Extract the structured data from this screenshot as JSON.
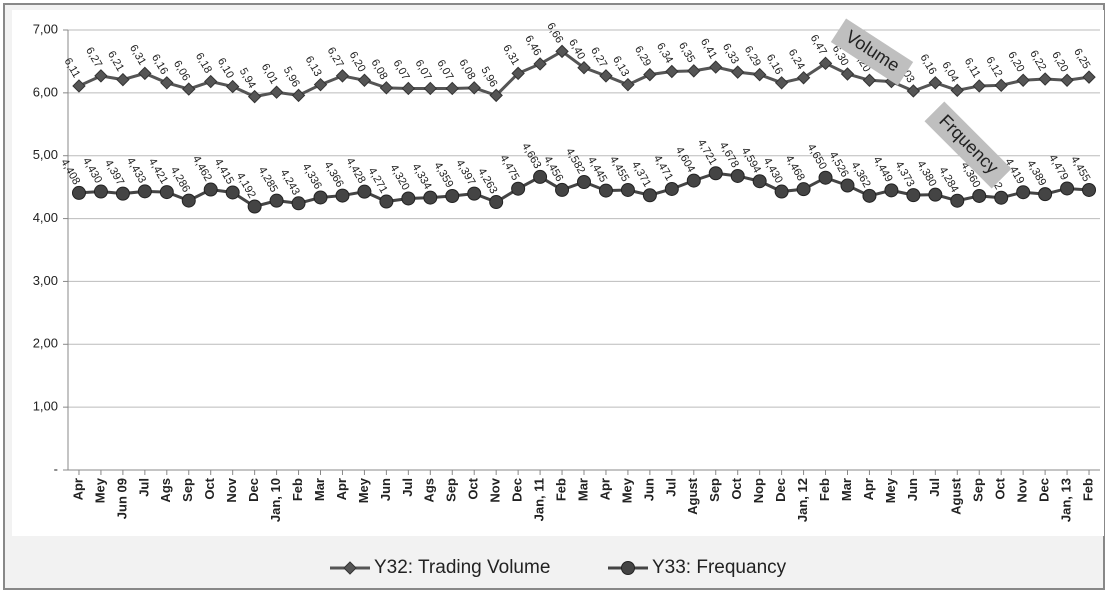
{
  "chart_data": {
    "type": "line",
    "categories": [
      "Apr",
      "Mey",
      "Jun 09",
      "Jul",
      "Ags",
      "Sep",
      "Oct",
      "Nov",
      "Dec",
      "Jan, 10",
      "Feb",
      "Mar",
      "Apr",
      "Mey",
      "Jun",
      "Jul",
      "Ags",
      "Sep",
      "Oct",
      "Nov",
      "Dec",
      "Jan, 11",
      "Feb",
      "Mar",
      "Apr",
      "Mey",
      "Jun",
      "Jul",
      "Agust",
      "Sep",
      "Oct",
      "Nop",
      "Dec",
      "Jan, 12",
      "Feb",
      "Mar",
      "Apr",
      "Mey",
      "Jun",
      "Jul",
      "Agust",
      "Sep",
      "Oct",
      "Nov",
      "Dec",
      "Jan, 13",
      "Feb"
    ],
    "series": [
      {
        "name": "Y32: Trading Volume",
        "color": "#555555",
        "marker": "diamond",
        "values": [
          6.11,
          6.27,
          6.21,
          6.31,
          6.16,
          6.06,
          6.18,
          6.1,
          5.94,
          6.01,
          5.96,
          6.13,
          6.27,
          6.2,
          6.08,
          6.07,
          6.07,
          6.07,
          6.08,
          5.96,
          6.31,
          6.46,
          6.66,
          6.4,
          6.27,
          6.13,
          6.29,
          6.34,
          6.35,
          6.41,
          6.33,
          6.29,
          6.16,
          6.24,
          6.47,
          6.3,
          6.2,
          6.18,
          6.03,
          6.16,
          6.04,
          6.11,
          6.12,
          6.2,
          6.22,
          6.2,
          6.25
        ],
        "value_labels": [
          "6,11",
          "6,27",
          "6,21",
          "6,31",
          "6,16",
          "6,06",
          "6,18",
          "6,10",
          "5,94",
          "6,01",
          "5,96",
          "6,13",
          "6,27",
          "6,20",
          "6,08",
          "6,07",
          "6,07",
          "6,07",
          "6,08",
          "5,96",
          "6,31",
          "6,46",
          "6,66",
          "6,40",
          "6,27",
          "6,13",
          "6,29",
          "6,34",
          "6,35",
          "6,41",
          "6,33",
          "6,29",
          "6,16",
          "6,24",
          "6,47",
          "6,30",
          "6,20",
          "6,18",
          "6,03",
          "6,16",
          "6,04",
          "6,11",
          "6,12",
          "6,20",
          "6,22",
          "6,20",
          "6,25"
        ]
      },
      {
        "name": "Y33: Frequancy",
        "color": "#444444",
        "marker": "circle",
        "values": [
          4.408,
          4.43,
          4.397,
          4.433,
          4.421,
          4.286,
          4.462,
          4.415,
          4.192,
          4.285,
          4.243,
          4.336,
          4.366,
          4.428,
          4.271,
          4.32,
          4.334,
          4.359,
          4.397,
          4.263,
          4.475,
          4.663,
          4.456,
          4.582,
          4.445,
          4.455,
          4.371,
          4.471,
          4.604,
          4.721,
          4.678,
          4.594,
          4.43,
          4.468,
          4.65,
          4.526,
          4.362,
          4.449,
          4.373,
          4.38,
          4.284,
          4.36,
          4.332,
          4.419,
          4.389,
          4.479,
          4.455
        ],
        "value_labels": [
          "4,408",
          "4,430",
          "4,397",
          "4,433",
          "4,421",
          "4,286",
          "4,462",
          "4,415",
          "4,192",
          "4,285",
          "4,243",
          "4,336",
          "4,366",
          "4,428",
          "4,271",
          "4,320",
          "4,334",
          "4,359",
          "4,397",
          "4,263",
          "4,475",
          "4,663",
          "4,456",
          "4,582",
          "4,445",
          "4,455",
          "4,371",
          "4,471",
          "4,604",
          "4,721",
          "4,678",
          "4,594",
          "4,430",
          "4,468",
          "4,650",
          "4,526",
          "4,362",
          "4,449",
          "4,373",
          "4,380",
          "4,284",
          "4,360",
          "4,332",
          "4,419",
          "4,389",
          "4,479",
          "4,455"
        ]
      }
    ],
    "ylim": [
      0,
      7
    ],
    "yticks": [
      {
        "value": 0,
        "label": "-"
      },
      {
        "value": 1,
        "label": "1,00"
      },
      {
        "value": 2,
        "label": "2,00"
      },
      {
        "value": 3,
        "label": "3,00"
      },
      {
        "value": 4,
        "label": "4,00"
      },
      {
        "value": 5,
        "label": "5,00"
      },
      {
        "value": 6,
        "label": "6,00"
      },
      {
        "value": 7,
        "label": "7,00"
      }
    ],
    "grid": true,
    "legend": "bottom",
    "annotations": [
      {
        "text": "Volume"
      },
      {
        "text": "Frquency"
      }
    ]
  }
}
